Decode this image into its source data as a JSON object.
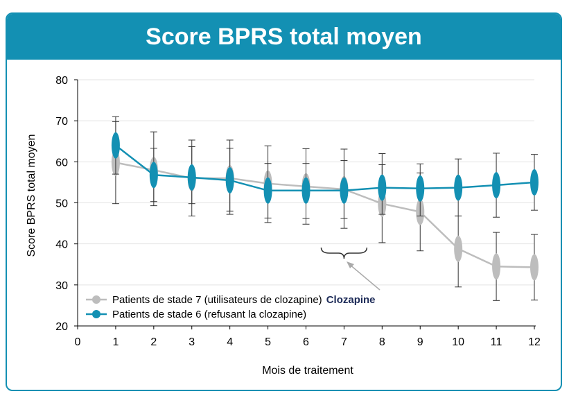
{
  "chart_data": {
    "type": "line",
    "title": "Score BPRS total moyen",
    "xlabel": "Mois de traitement",
    "ylabel": "Score BPRS total moyen",
    "xlim": [
      0,
      12
    ],
    "ylim": [
      20,
      80
    ],
    "x_ticks": [
      0,
      1,
      2,
      3,
      4,
      5,
      6,
      7,
      8,
      9,
      10,
      11,
      12
    ],
    "y_ticks": [
      20,
      30,
      40,
      50,
      60,
      70,
      80
    ],
    "grid": "horizontal",
    "legend_position": "bottom-left",
    "series": [
      {
        "name": "Patients de stade 7 (utilisateurs de clozapine)",
        "color": "#bdbdbd",
        "x": [
          1,
          2,
          3,
          4,
          5,
          6,
          7,
          8,
          9,
          10,
          11,
          12
        ],
        "y": [
          59.8,
          58.0,
          56.0,
          56.0,
          54.7,
          54.0,
          53.3,
          49.8,
          47.8,
          38.8,
          34.5,
          34.3
        ],
        "err_low": [
          49.8,
          49.3,
          46.8,
          47.2,
          45.2,
          44.8,
          43.8,
          40.3,
          38.3,
          29.5,
          26.2,
          26.3
        ],
        "err_high": [
          69.8,
          63.3,
          63.7,
          63.3,
          59.6,
          59.6,
          60.3,
          59.3,
          57.3,
          46.8,
          42.8,
          42.3
        ]
      },
      {
        "name": "Patients de stade 6 (refusant la clozapine)",
        "color": "#1390b3",
        "x": [
          1,
          2,
          3,
          4,
          5,
          6,
          7,
          8,
          9,
          10,
          11,
          12
        ],
        "y": [
          64.0,
          56.8,
          56.2,
          55.5,
          53.0,
          53.0,
          53.0,
          53.7,
          53.5,
          53.7,
          54.3,
          55.0
        ],
        "err_low": [
          57.0,
          50.3,
          49.8,
          48.0,
          46.3,
          46.2,
          46.2,
          47.2,
          46.8,
          46.8,
          46.5,
          48.2
        ],
        "err_high": [
          71.0,
          67.3,
          65.3,
          65.3,
          63.9,
          63.2,
          63.1,
          62.0,
          59.5,
          60.7,
          62.1,
          61.8
        ]
      }
    ],
    "annotation": {
      "text": "Clozapine",
      "x_start": 6.4,
      "x_end": 7.6
    }
  }
}
